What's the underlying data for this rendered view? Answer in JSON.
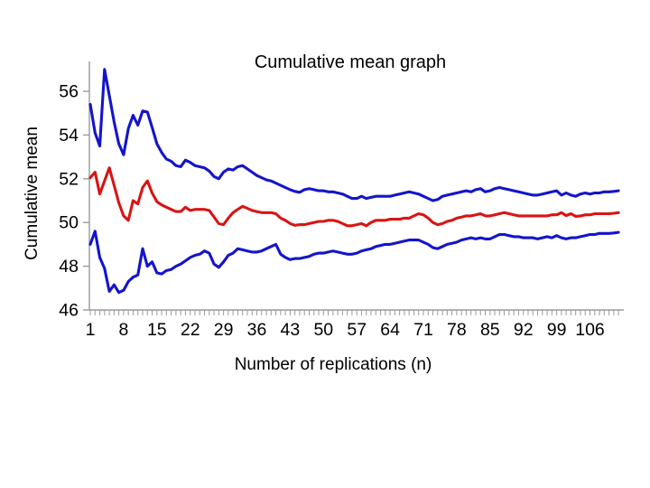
{
  "page": {
    "background": "#ffffff"
  },
  "chart": {
    "title": "Cumulative mean graph",
    "x_axis_title": "Number of replications (n)",
    "y_axis_title": "Cumulative mean"
  },
  "chart_data": {
    "type": "line",
    "title": "Cumulative mean graph",
    "xlabel": "Number of replications (n)",
    "ylabel": "Cumulative mean",
    "x_start": 1,
    "x_step": 1,
    "xlim": [
      1,
      112
    ],
    "ylim": [
      46,
      57.2
    ],
    "x_tick_labels": [
      1,
      8,
      15,
      22,
      29,
      36,
      43,
      50,
      57,
      64,
      71,
      78,
      85,
      92,
      99,
      106
    ],
    "y_ticks": [
      46,
      48,
      50,
      52,
      54,
      56
    ],
    "grid": false,
    "legend": "none",
    "colors": {
      "mean": "#d91414",
      "bounds": "#1414cc",
      "axis": "#9a9a9a",
      "text": "#000000"
    },
    "series": [
      {
        "name": "upper-bound",
        "color_key": "bounds",
        "values": [
          55.4,
          54.1,
          53.5,
          57.0,
          55.8,
          54.6,
          53.6,
          53.1,
          54.3,
          54.9,
          54.45,
          55.1,
          55.05,
          54.35,
          53.6,
          53.2,
          52.9,
          52.8,
          52.6,
          52.55,
          52.85,
          52.75,
          52.6,
          52.55,
          52.5,
          52.35,
          52.1,
          52.0,
          52.3,
          52.45,
          52.4,
          52.55,
          52.6,
          52.45,
          52.3,
          52.15,
          52.05,
          51.95,
          51.9,
          51.8,
          51.7,
          51.6,
          51.5,
          51.42,
          51.38,
          51.5,
          51.55,
          51.5,
          51.45,
          51.45,
          51.4,
          51.4,
          51.35,
          51.3,
          51.2,
          51.1,
          51.1,
          51.2,
          51.1,
          51.15,
          51.2,
          51.2,
          51.2,
          51.2,
          51.25,
          51.3,
          51.35,
          51.4,
          51.35,
          51.3,
          51.2,
          51.1,
          51.0,
          51.05,
          51.2,
          51.25,
          51.3,
          51.35,
          51.4,
          51.45,
          51.4,
          51.5,
          51.55,
          51.4,
          51.45,
          51.55,
          51.6,
          51.55,
          51.5,
          51.45,
          51.4,
          51.35,
          51.3,
          51.25,
          51.25,
          51.3,
          51.35,
          51.4,
          51.45,
          51.25,
          51.35,
          51.25,
          51.2,
          51.3,
          51.35,
          51.3,
          51.35,
          51.35,
          51.4,
          51.4,
          51.42,
          51.45
        ]
      },
      {
        "name": "cumulative-mean",
        "color_key": "mean",
        "values": [
          52.05,
          52.3,
          51.3,
          51.9,
          52.5,
          51.7,
          50.9,
          50.3,
          50.1,
          51.0,
          50.85,
          51.6,
          51.9,
          51.35,
          50.95,
          50.8,
          50.7,
          50.6,
          50.5,
          50.5,
          50.7,
          50.55,
          50.6,
          50.6,
          50.6,
          50.55,
          50.25,
          49.95,
          49.9,
          50.2,
          50.45,
          50.6,
          50.74,
          50.65,
          50.55,
          50.5,
          50.45,
          50.45,
          50.45,
          50.4,
          50.2,
          50.1,
          49.95,
          49.87,
          49.9,
          49.9,
          49.95,
          50.0,
          50.05,
          50.05,
          50.1,
          50.1,
          50.05,
          49.95,
          49.85,
          49.85,
          49.9,
          49.95,
          49.85,
          50.0,
          50.1,
          50.1,
          50.1,
          50.15,
          50.15,
          50.15,
          50.2,
          50.2,
          50.3,
          50.4,
          50.35,
          50.2,
          50.0,
          49.9,
          49.95,
          50.05,
          50.1,
          50.2,
          50.25,
          50.3,
          50.3,
          50.35,
          50.4,
          50.3,
          50.3,
          50.35,
          50.4,
          50.45,
          50.4,
          50.35,
          50.3,
          50.3,
          50.3,
          50.3,
          50.3,
          50.3,
          50.3,
          50.35,
          50.35,
          50.45,
          50.32,
          50.4,
          50.28,
          50.3,
          50.35,
          50.35,
          50.4,
          50.4,
          50.4,
          50.4,
          50.42,
          50.45
        ]
      },
      {
        "name": "lower-bound",
        "color_key": "bounds",
        "values": [
          49.0,
          49.6,
          48.4,
          47.9,
          46.85,
          47.15,
          46.8,
          46.9,
          47.3,
          47.5,
          47.6,
          48.8,
          48.0,
          48.2,
          47.7,
          47.65,
          47.8,
          47.85,
          48.0,
          48.1,
          48.25,
          48.4,
          48.5,
          48.55,
          48.7,
          48.6,
          48.1,
          47.95,
          48.2,
          48.5,
          48.6,
          48.8,
          48.75,
          48.7,
          48.65,
          48.65,
          48.7,
          48.8,
          48.9,
          49.0,
          48.55,
          48.4,
          48.3,
          48.35,
          48.35,
          48.4,
          48.45,
          48.55,
          48.6,
          48.6,
          48.65,
          48.7,
          48.65,
          48.6,
          48.55,
          48.55,
          48.6,
          48.7,
          48.75,
          48.8,
          48.9,
          48.95,
          49.0,
          49.0,
          49.05,
          49.1,
          49.15,
          49.2,
          49.2,
          49.2,
          49.1,
          49.0,
          48.85,
          48.8,
          48.9,
          49.0,
          49.05,
          49.1,
          49.2,
          49.25,
          49.3,
          49.25,
          49.3,
          49.25,
          49.25,
          49.35,
          49.45,
          49.45,
          49.4,
          49.35,
          49.35,
          49.3,
          49.3,
          49.3,
          49.25,
          49.3,
          49.35,
          49.3,
          49.4,
          49.3,
          49.25,
          49.3,
          49.3,
          49.35,
          49.4,
          49.45,
          49.45,
          49.5,
          49.5,
          49.5,
          49.52,
          49.55
        ]
      }
    ]
  }
}
